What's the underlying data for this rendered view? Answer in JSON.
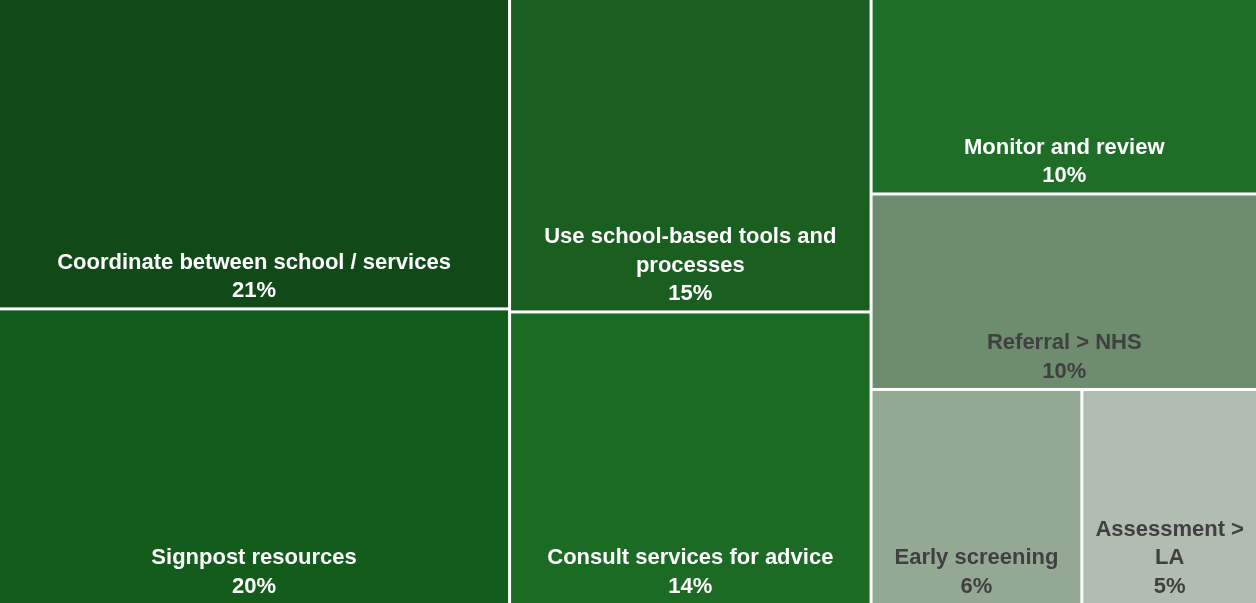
{
  "chart_data": {
    "type": "other",
    "categories": [
      "Coordinate between school / services",
      "Signpost resources",
      "Use school-based tools and processes",
      "Consult services for advice",
      "Monitor and review",
      "Referral > NHS",
      "Early screening",
      "Assessment > LA"
    ],
    "values": [
      21,
      20,
      15,
      14,
      10,
      10,
      6,
      5
    ],
    "value_labels": [
      "21%",
      "20%",
      "15%",
      "14%",
      "10%",
      "10%",
      "6%",
      "5%"
    ],
    "colors": [
      "#114a18",
      "#145c1c",
      "#1a5e20",
      "#1b6b24",
      "#1e6e28",
      "#6e8c6e",
      "#94a994",
      "#b0bdb0"
    ]
  }
}
